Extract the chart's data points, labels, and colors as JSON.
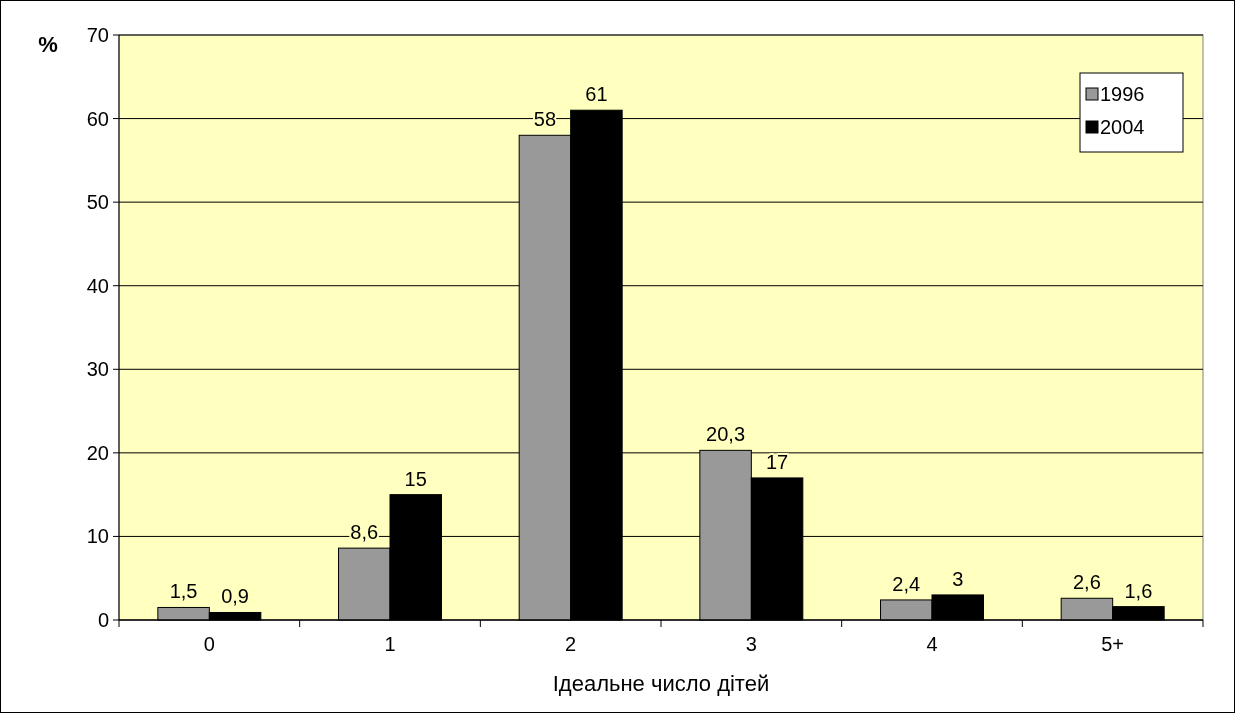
{
  "chart_data": {
    "type": "bar",
    "ylabel": "%",
    "xlabel": "Ідеальне число дітей",
    "categories": [
      "0",
      "1",
      "2",
      "3",
      "4",
      "5+"
    ],
    "series": [
      {
        "name": "1996",
        "color": "#999999",
        "values": [
          1.5,
          8.6,
          58,
          20.3,
          2.4,
          2.6
        ],
        "value_labels": [
          "1,5",
          "8,6",
          "58",
          "20,3",
          "2,4",
          "2,6"
        ]
      },
      {
        "name": "2004",
        "color": "#000000",
        "values": [
          0.9,
          15,
          61,
          17,
          3,
          1.6
        ],
        "value_labels": [
          "0,9",
          "15",
          "61",
          "17",
          "3",
          "1,6"
        ]
      }
    ],
    "ylim": [
      0,
      70
    ],
    "yticks": [
      0,
      10,
      20,
      30,
      40,
      50,
      60,
      70
    ],
    "grid": "y",
    "legend": "top right"
  }
}
